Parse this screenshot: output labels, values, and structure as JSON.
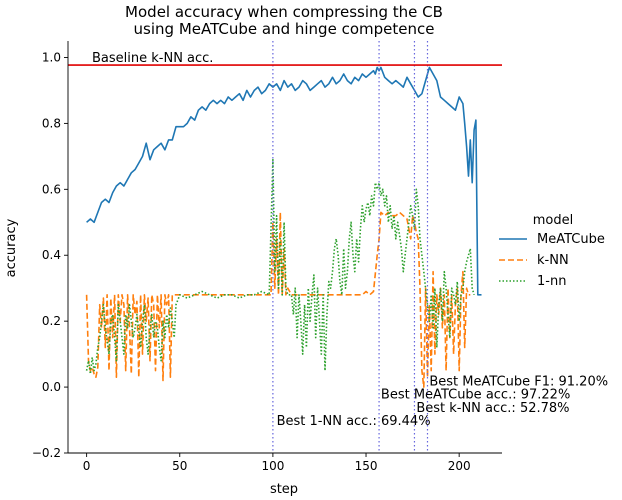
{
  "chart_data": {
    "type": "line",
    "title_line1": "Model accuracy when compressing the CB",
    "title_line2": "using MeATCube and hinge competence",
    "xlabel": "step",
    "ylabel": "accuracy",
    "xlim": [
      -10,
      223
    ],
    "ylim": [
      -0.2,
      1.05
    ],
    "xticks": [
      0,
      50,
      100,
      150,
      200
    ],
    "yticks": [
      -0.2,
      0.0,
      0.2,
      0.4,
      0.6,
      0.8,
      1.0
    ],
    "grid": false,
    "legend": {
      "title": "model",
      "placement": "right"
    },
    "baseline": {
      "value": 0.977,
      "label": "Baseline k-NN acc.",
      "color": "#e00000"
    },
    "vlines": [
      100,
      157,
      176,
      183
    ],
    "vline_color": "#6666dd",
    "annotations": [
      {
        "text": "Best MeATCube F1: 91.20%",
        "x": 184,
        "y": 0.005
      },
      {
        "text": "Best MeATCube acc.: 97.22%",
        "x": 158,
        "y": -0.035
      },
      {
        "text": "Best k-NN acc.: 52.78%",
        "x": 177,
        "y": -0.075
      },
      {
        "text": "Best 1-NN acc.: 69.44%",
        "x": 102,
        "y": -0.115
      }
    ],
    "series": [
      {
        "name": "MeATCube",
        "color": "#1f77b4",
        "dash": "none",
        "x": [
          0,
          2,
          4,
          6,
          8,
          10,
          12,
          14,
          16,
          18,
          20,
          22,
          24,
          26,
          28,
          30,
          32,
          34,
          36,
          38,
          40,
          42,
          44,
          46,
          48,
          50,
          52,
          54,
          56,
          58,
          60,
          62,
          64,
          66,
          68,
          70,
          72,
          74,
          76,
          78,
          80,
          82,
          84,
          86,
          88,
          90,
          92,
          94,
          96,
          98,
          100,
          102,
          104,
          106,
          108,
          110,
          112,
          114,
          116,
          118,
          120,
          122,
          124,
          126,
          128,
          130,
          132,
          134,
          136,
          138,
          140,
          142,
          144,
          146,
          148,
          150,
          152,
          154,
          155,
          156,
          157,
          158,
          160,
          162,
          164,
          166,
          168,
          170,
          172,
          174,
          176,
          178,
          180,
          182,
          184,
          186,
          188,
          190,
          192,
          194,
          196,
          198,
          200,
          202,
          203,
          204,
          205,
          206,
          207,
          208,
          209,
          210,
          212
        ],
        "values": [
          0.5,
          0.51,
          0.5,
          0.53,
          0.56,
          0.57,
          0.56,
          0.59,
          0.61,
          0.62,
          0.61,
          0.63,
          0.65,
          0.66,
          0.68,
          0.7,
          0.74,
          0.69,
          0.72,
          0.73,
          0.74,
          0.72,
          0.75,
          0.75,
          0.79,
          0.79,
          0.79,
          0.8,
          0.82,
          0.81,
          0.84,
          0.85,
          0.84,
          0.86,
          0.87,
          0.86,
          0.87,
          0.86,
          0.88,
          0.87,
          0.88,
          0.89,
          0.87,
          0.9,
          0.88,
          0.9,
          0.91,
          0.89,
          0.9,
          0.92,
          0.91,
          0.92,
          0.9,
          0.93,
          0.91,
          0.92,
          0.9,
          0.91,
          0.93,
          0.92,
          0.9,
          0.91,
          0.92,
          0.93,
          0.91,
          0.92,
          0.94,
          0.92,
          0.93,
          0.95,
          0.93,
          0.92,
          0.94,
          0.93,
          0.95,
          0.94,
          0.95,
          0.96,
          0.95,
          0.97,
          0.96,
          0.97,
          0.94,
          0.93,
          0.92,
          0.93,
          0.92,
          0.91,
          0.94,
          0.92,
          0.9,
          0.88,
          0.89,
          0.93,
          0.97,
          0.95,
          0.93,
          0.88,
          0.87,
          0.86,
          0.85,
          0.84,
          0.88,
          0.86,
          0.8,
          0.73,
          0.64,
          0.75,
          0.62,
          0.78,
          0.81,
          0.28,
          0.28
        ]
      },
      {
        "name": "k-NN",
        "color": "#ff7f0e",
        "dash": "6,3",
        "x": [
          0,
          1,
          2,
          3,
          4,
          5,
          6,
          7,
          8,
          9,
          10,
          11,
          12,
          13,
          14,
          15,
          16,
          17,
          18,
          19,
          20,
          21,
          22,
          23,
          24,
          25,
          26,
          27,
          28,
          29,
          30,
          31,
          32,
          33,
          34,
          35,
          36,
          37,
          38,
          39,
          40,
          41,
          42,
          43,
          44,
          45,
          46,
          48,
          50,
          60,
          70,
          80,
          90,
          98,
          99,
          100,
          101,
          102,
          103,
          104,
          105,
          106,
          107,
          108,
          110,
          120,
          130,
          140,
          148,
          150,
          152,
          154,
          156,
          157,
          158,
          160,
          162,
          164,
          166,
          168,
          170,
          172,
          174,
          175,
          176,
          177,
          178,
          179,
          180,
          181,
          182,
          183,
          184,
          185,
          186,
          187,
          188,
          189,
          190,
          191,
          192,
          193,
          194,
          195,
          196,
          197,
          198,
          199,
          200,
          201,
          202,
          203,
          204,
          205,
          206
        ],
        "values": [
          0.28,
          0.08,
          0.05,
          0.06,
          0.04,
          0.03,
          0.06,
          0.25,
          0.18,
          0.27,
          0.12,
          0.28,
          0.05,
          0.27,
          0.15,
          0.28,
          0.03,
          0.28,
          0.2,
          0.28,
          0.25,
          0.05,
          0.28,
          0.18,
          0.04,
          0.28,
          0.22,
          0.26,
          0.03,
          0.28,
          0.1,
          0.28,
          0.2,
          0.27,
          0.08,
          0.28,
          0.25,
          0.05,
          0.28,
          0.18,
          0.28,
          0.02,
          0.28,
          0.25,
          0.28,
          0.03,
          0.28,
          0.28,
          0.28,
          0.28,
          0.28,
          0.28,
          0.28,
          0.28,
          0.28,
          0.5,
          0.3,
          0.45,
          0.28,
          0.53,
          0.28,
          0.42,
          0.28,
          0.3,
          0.28,
          0.28,
          0.28,
          0.28,
          0.28,
          0.29,
          0.28,
          0.29,
          0.4,
          0.45,
          0.53,
          0.52,
          0.53,
          0.52,
          0.52,
          0.53,
          0.52,
          0.51,
          0.45,
          0.52,
          0.5,
          0.47,
          0.45,
          0.3,
          0.05,
          0.0,
          0.3,
          0.03,
          0.25,
          0.05,
          0.35,
          0.1,
          0.28,
          0.22,
          0.3,
          0.18,
          0.28,
          0.05,
          0.3,
          0.15,
          0.28,
          0.1,
          0.25,
          0.3,
          0.05,
          0.28,
          0.35,
          0.12,
          0.3,
          0.28,
          0.28
        ]
      },
      {
        "name": "1-nn",
        "color": "#2ca02c",
        "dash": "1.5,2",
        "x": [
          0,
          1,
          2,
          3,
          4,
          5,
          6,
          7,
          8,
          9,
          10,
          11,
          12,
          13,
          14,
          15,
          16,
          17,
          18,
          19,
          20,
          21,
          22,
          23,
          24,
          25,
          26,
          27,
          28,
          29,
          30,
          31,
          32,
          33,
          34,
          35,
          36,
          37,
          38,
          39,
          40,
          41,
          42,
          43,
          44,
          45,
          46,
          47,
          48,
          50,
          54,
          58,
          62,
          66,
          70,
          74,
          78,
          82,
          86,
          90,
          94,
          98,
          100,
          101,
          102,
          103,
          104,
          105,
          106,
          107,
          108,
          110,
          111,
          112,
          113,
          114,
          115,
          116,
          117,
          118,
          119,
          120,
          121,
          122,
          123,
          124,
          125,
          126,
          127,
          128,
          129,
          130,
          131,
          132,
          133,
          134,
          135,
          136,
          137,
          138,
          139,
          140,
          141,
          142,
          143,
          144,
          145,
          146,
          147,
          148,
          149,
          150,
          151,
          152,
          153,
          154,
          155,
          156,
          157,
          158,
          159,
          160,
          161,
          162,
          163,
          164,
          165,
          166,
          167,
          168,
          169,
          170,
          171,
          172,
          173,
          174,
          175,
          176,
          177,
          178,
          179,
          180,
          181,
          182,
          183,
          184,
          185,
          186,
          187,
          188,
          189,
          190,
          191,
          192,
          193,
          194,
          195,
          196,
          197,
          198,
          199,
          200,
          201,
          202,
          203,
          204,
          205,
          206,
          207,
          208
        ],
        "values": [
          0.05,
          0.08,
          0.04,
          0.09,
          0.05,
          0.07,
          0.12,
          0.15,
          0.2,
          0.25,
          0.18,
          0.14,
          0.1,
          0.2,
          0.22,
          0.15,
          0.08,
          0.25,
          0.2,
          0.15,
          0.1,
          0.22,
          0.18,
          0.25,
          0.2,
          0.15,
          0.18,
          0.22,
          0.17,
          0.12,
          0.2,
          0.25,
          0.15,
          0.1,
          0.18,
          0.22,
          0.15,
          0.2,
          0.18,
          0.12,
          0.08,
          0.2,
          0.15,
          0.22,
          0.18,
          0.24,
          0.2,
          0.15,
          0.25,
          0.28,
          0.27,
          0.28,
          0.29,
          0.28,
          0.27,
          0.28,
          0.28,
          0.27,
          0.28,
          0.28,
          0.29,
          0.28,
          0.69,
          0.35,
          0.52,
          0.3,
          0.45,
          0.28,
          0.5,
          0.3,
          0.28,
          0.28,
          0.22,
          0.3,
          0.15,
          0.28,
          0.2,
          0.1,
          0.25,
          0.12,
          0.3,
          0.2,
          0.28,
          0.34,
          0.15,
          0.3,
          0.2,
          0.1,
          0.28,
          0.05,
          0.22,
          0.32,
          0.3,
          0.35,
          0.42,
          0.45,
          0.4,
          0.32,
          0.28,
          0.42,
          0.3,
          0.35,
          0.45,
          0.5,
          0.4,
          0.35,
          0.45,
          0.38,
          0.48,
          0.55,
          0.5,
          0.54,
          0.56,
          0.52,
          0.58,
          0.55,
          0.62,
          0.6,
          0.62,
          0.58,
          0.6,
          0.55,
          0.58,
          0.5,
          0.55,
          0.48,
          0.52,
          0.45,
          0.5,
          0.46,
          0.42,
          0.35,
          0.4,
          0.45,
          0.5,
          0.55,
          0.52,
          0.48,
          0.6,
          0.55,
          0.45,
          0.4,
          0.35,
          0.3,
          0.25,
          0.2,
          0.28,
          0.18,
          0.3,
          0.12,
          0.25,
          0.3,
          0.2,
          0.35,
          0.3,
          0.22,
          0.15,
          0.3,
          0.28,
          0.25,
          0.32,
          0.2,
          0.28,
          0.3,
          0.35,
          0.38,
          0.4,
          0.42,
          0.3,
          0.28
        ]
      }
    ]
  }
}
